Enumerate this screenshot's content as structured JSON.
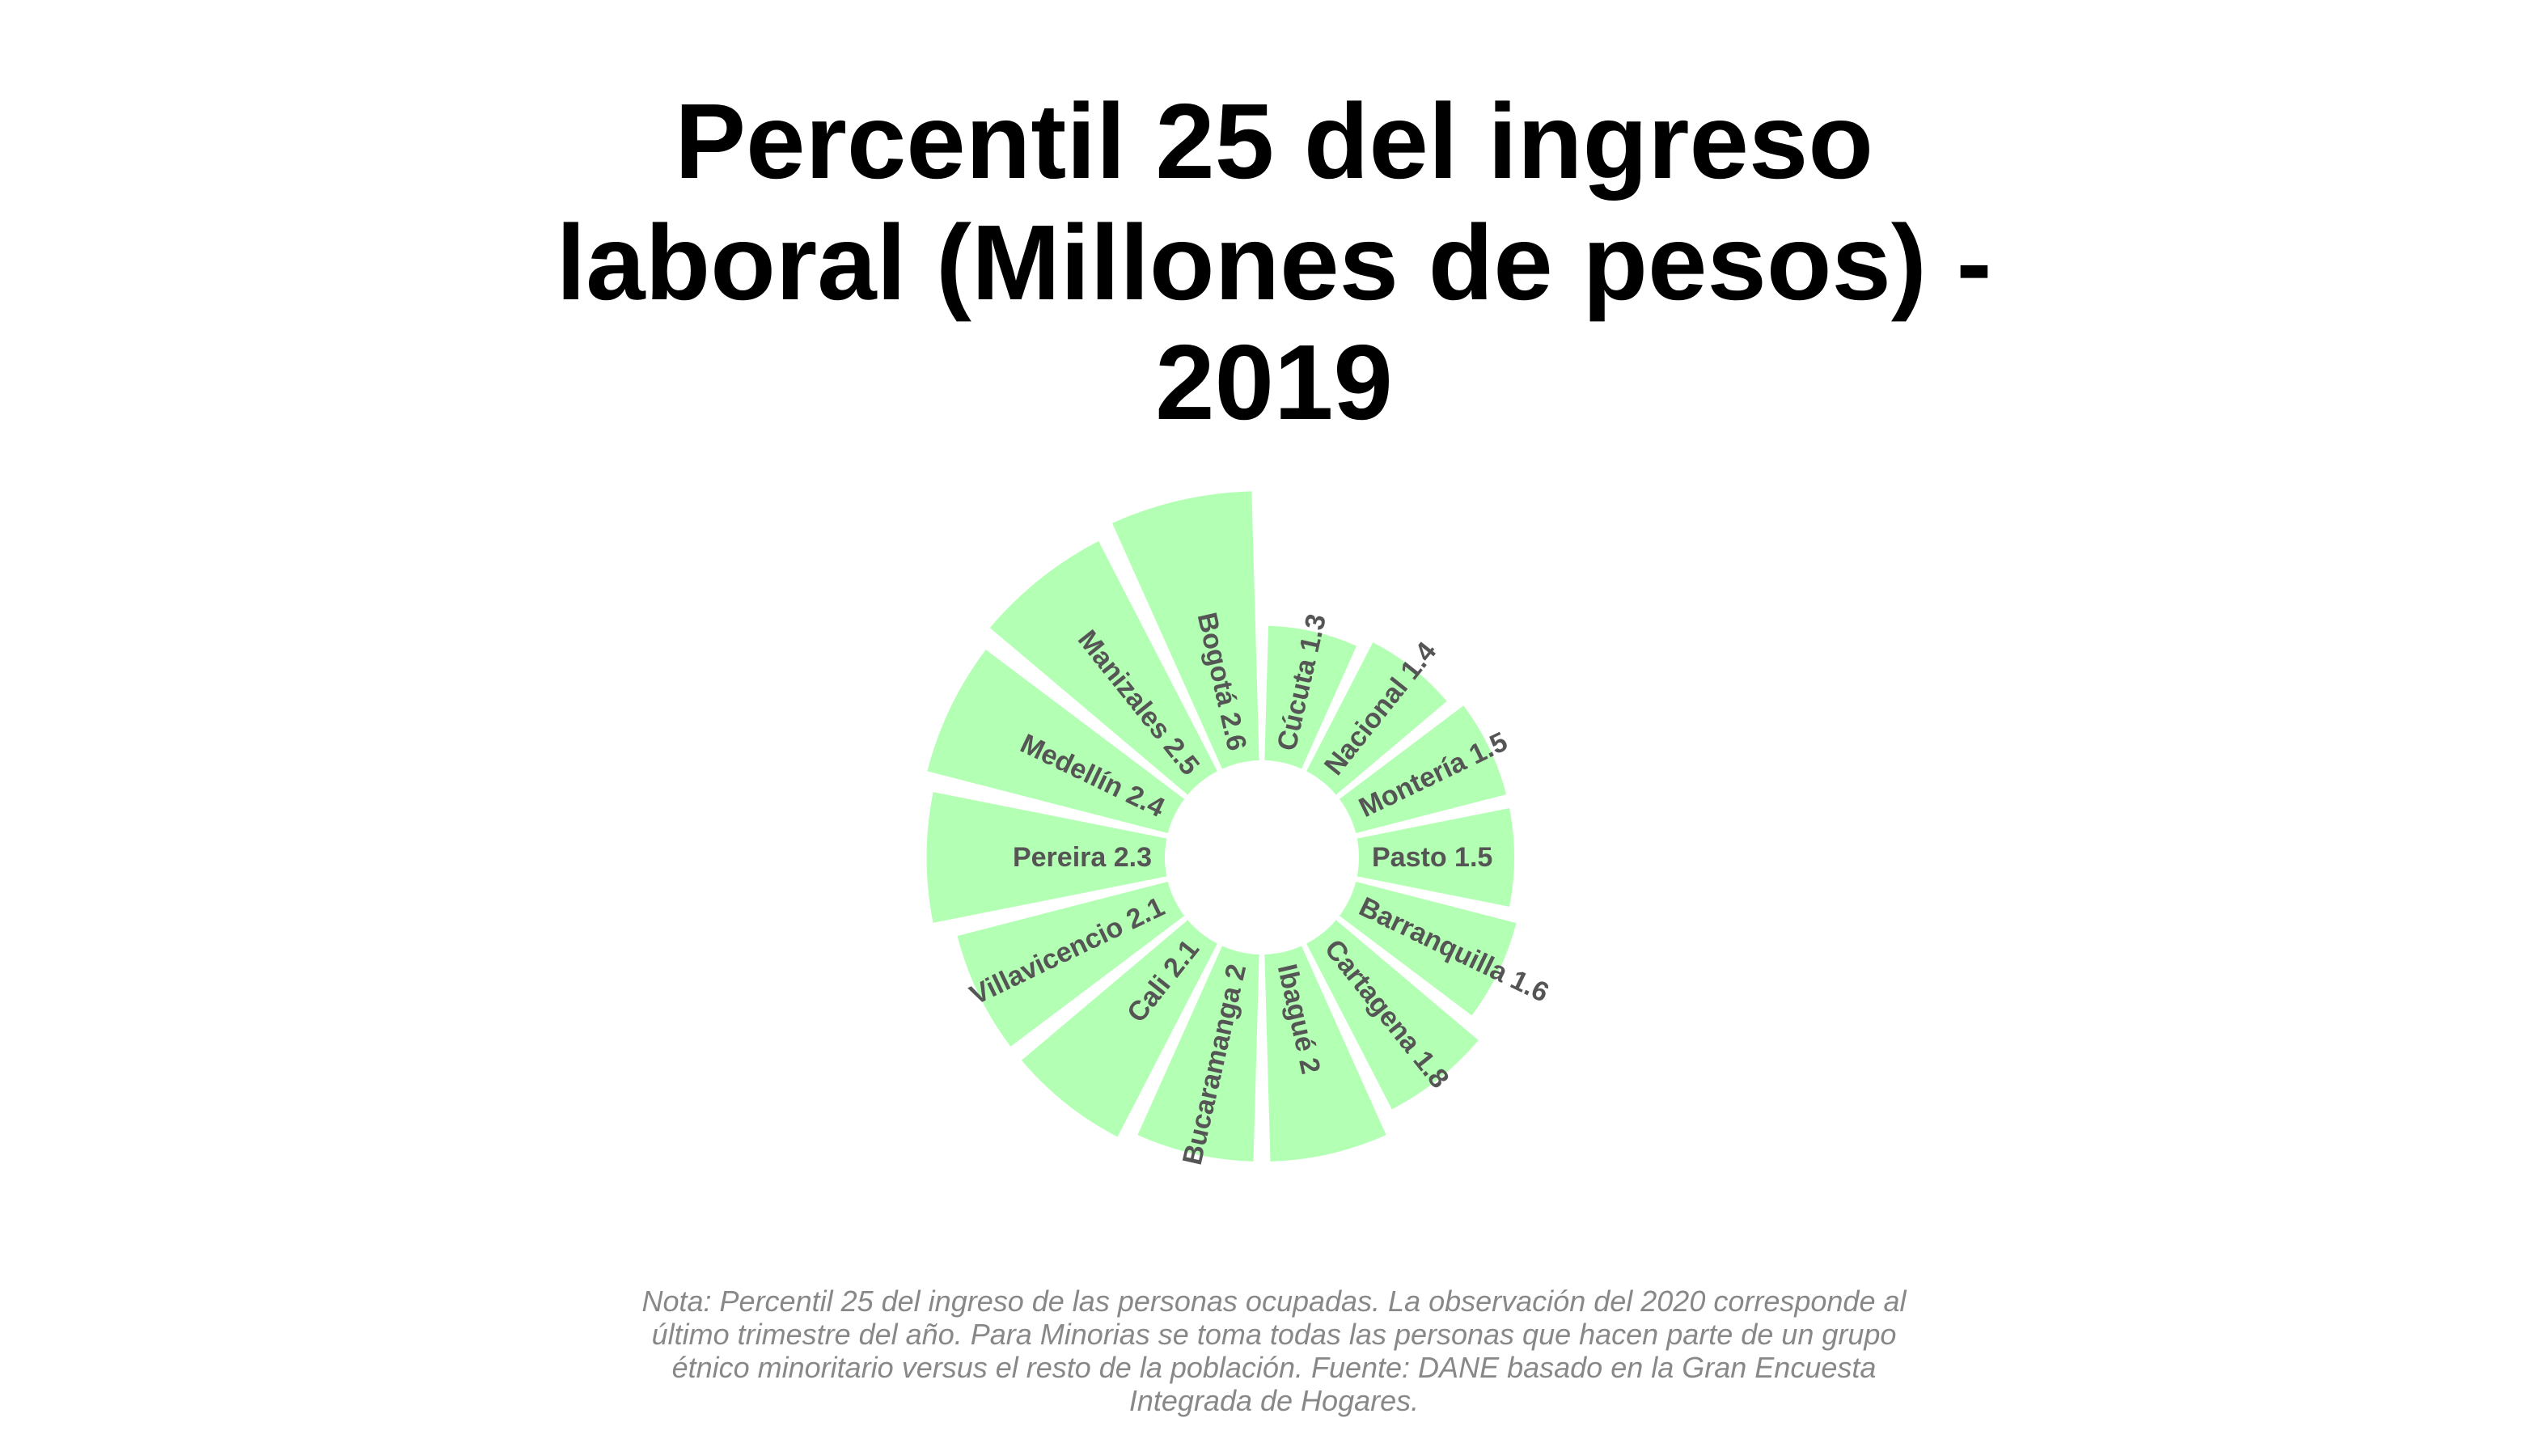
{
  "chart_data": {
    "type": "bar",
    "layout": "circular",
    "title": "Percentil 25 del ingreso laboral (Millones de pesos) - 2019",
    "title_lines": [
      "Percentil 25 del ingreso",
      "laboral (Millones de pesos) -",
      "2019"
    ],
    "categories": [
      "Cúcuta",
      "Nacional",
      "Montería",
      "Pasto",
      "Barranquilla",
      "Cartagena",
      "Ibagué",
      "Bucaramanga",
      "Cali",
      "Villavicencio",
      "Pereira",
      "Medellín",
      "Manizales",
      "Bogotá"
    ],
    "values": [
      1.3,
      1.4,
      1.5,
      1.5,
      1.6,
      1.8,
      2,
      2,
      2.1,
      2.1,
      2.3,
      2.4,
      2.5,
      2.6
    ],
    "labels": [
      "Cúcuta 1.3",
      "Nacional 1.4",
      "Montería 1.5",
      "Pasto 1.5",
      "Barranquilla 1.6",
      "Cartagena 1.8",
      "Ibagué 2",
      "Bucaramanga 2",
      "Cali 2.1",
      "Villavicencio 2.1",
      "Pereira 2.3",
      "Medellín 2.4",
      "Manizales 2.5",
      "Bogotá 2.6"
    ],
    "bar_color": "#b3ffb3",
    "label_color": "#555555",
    "grid": false,
    "legend": "none"
  },
  "note_lines": [
    "Nota: Percentil 25 del ingreso de las personas ocupadas. La observación del 2020 corresponde al",
    "último trimestre del año. Para Minorias se toma todas las personas que hacen parte de un grupo",
    "étnico minoritario versus el resto de la población. Fuente: DANE basado en la Gran Encuesta",
    "Integrada de Hogares."
  ]
}
